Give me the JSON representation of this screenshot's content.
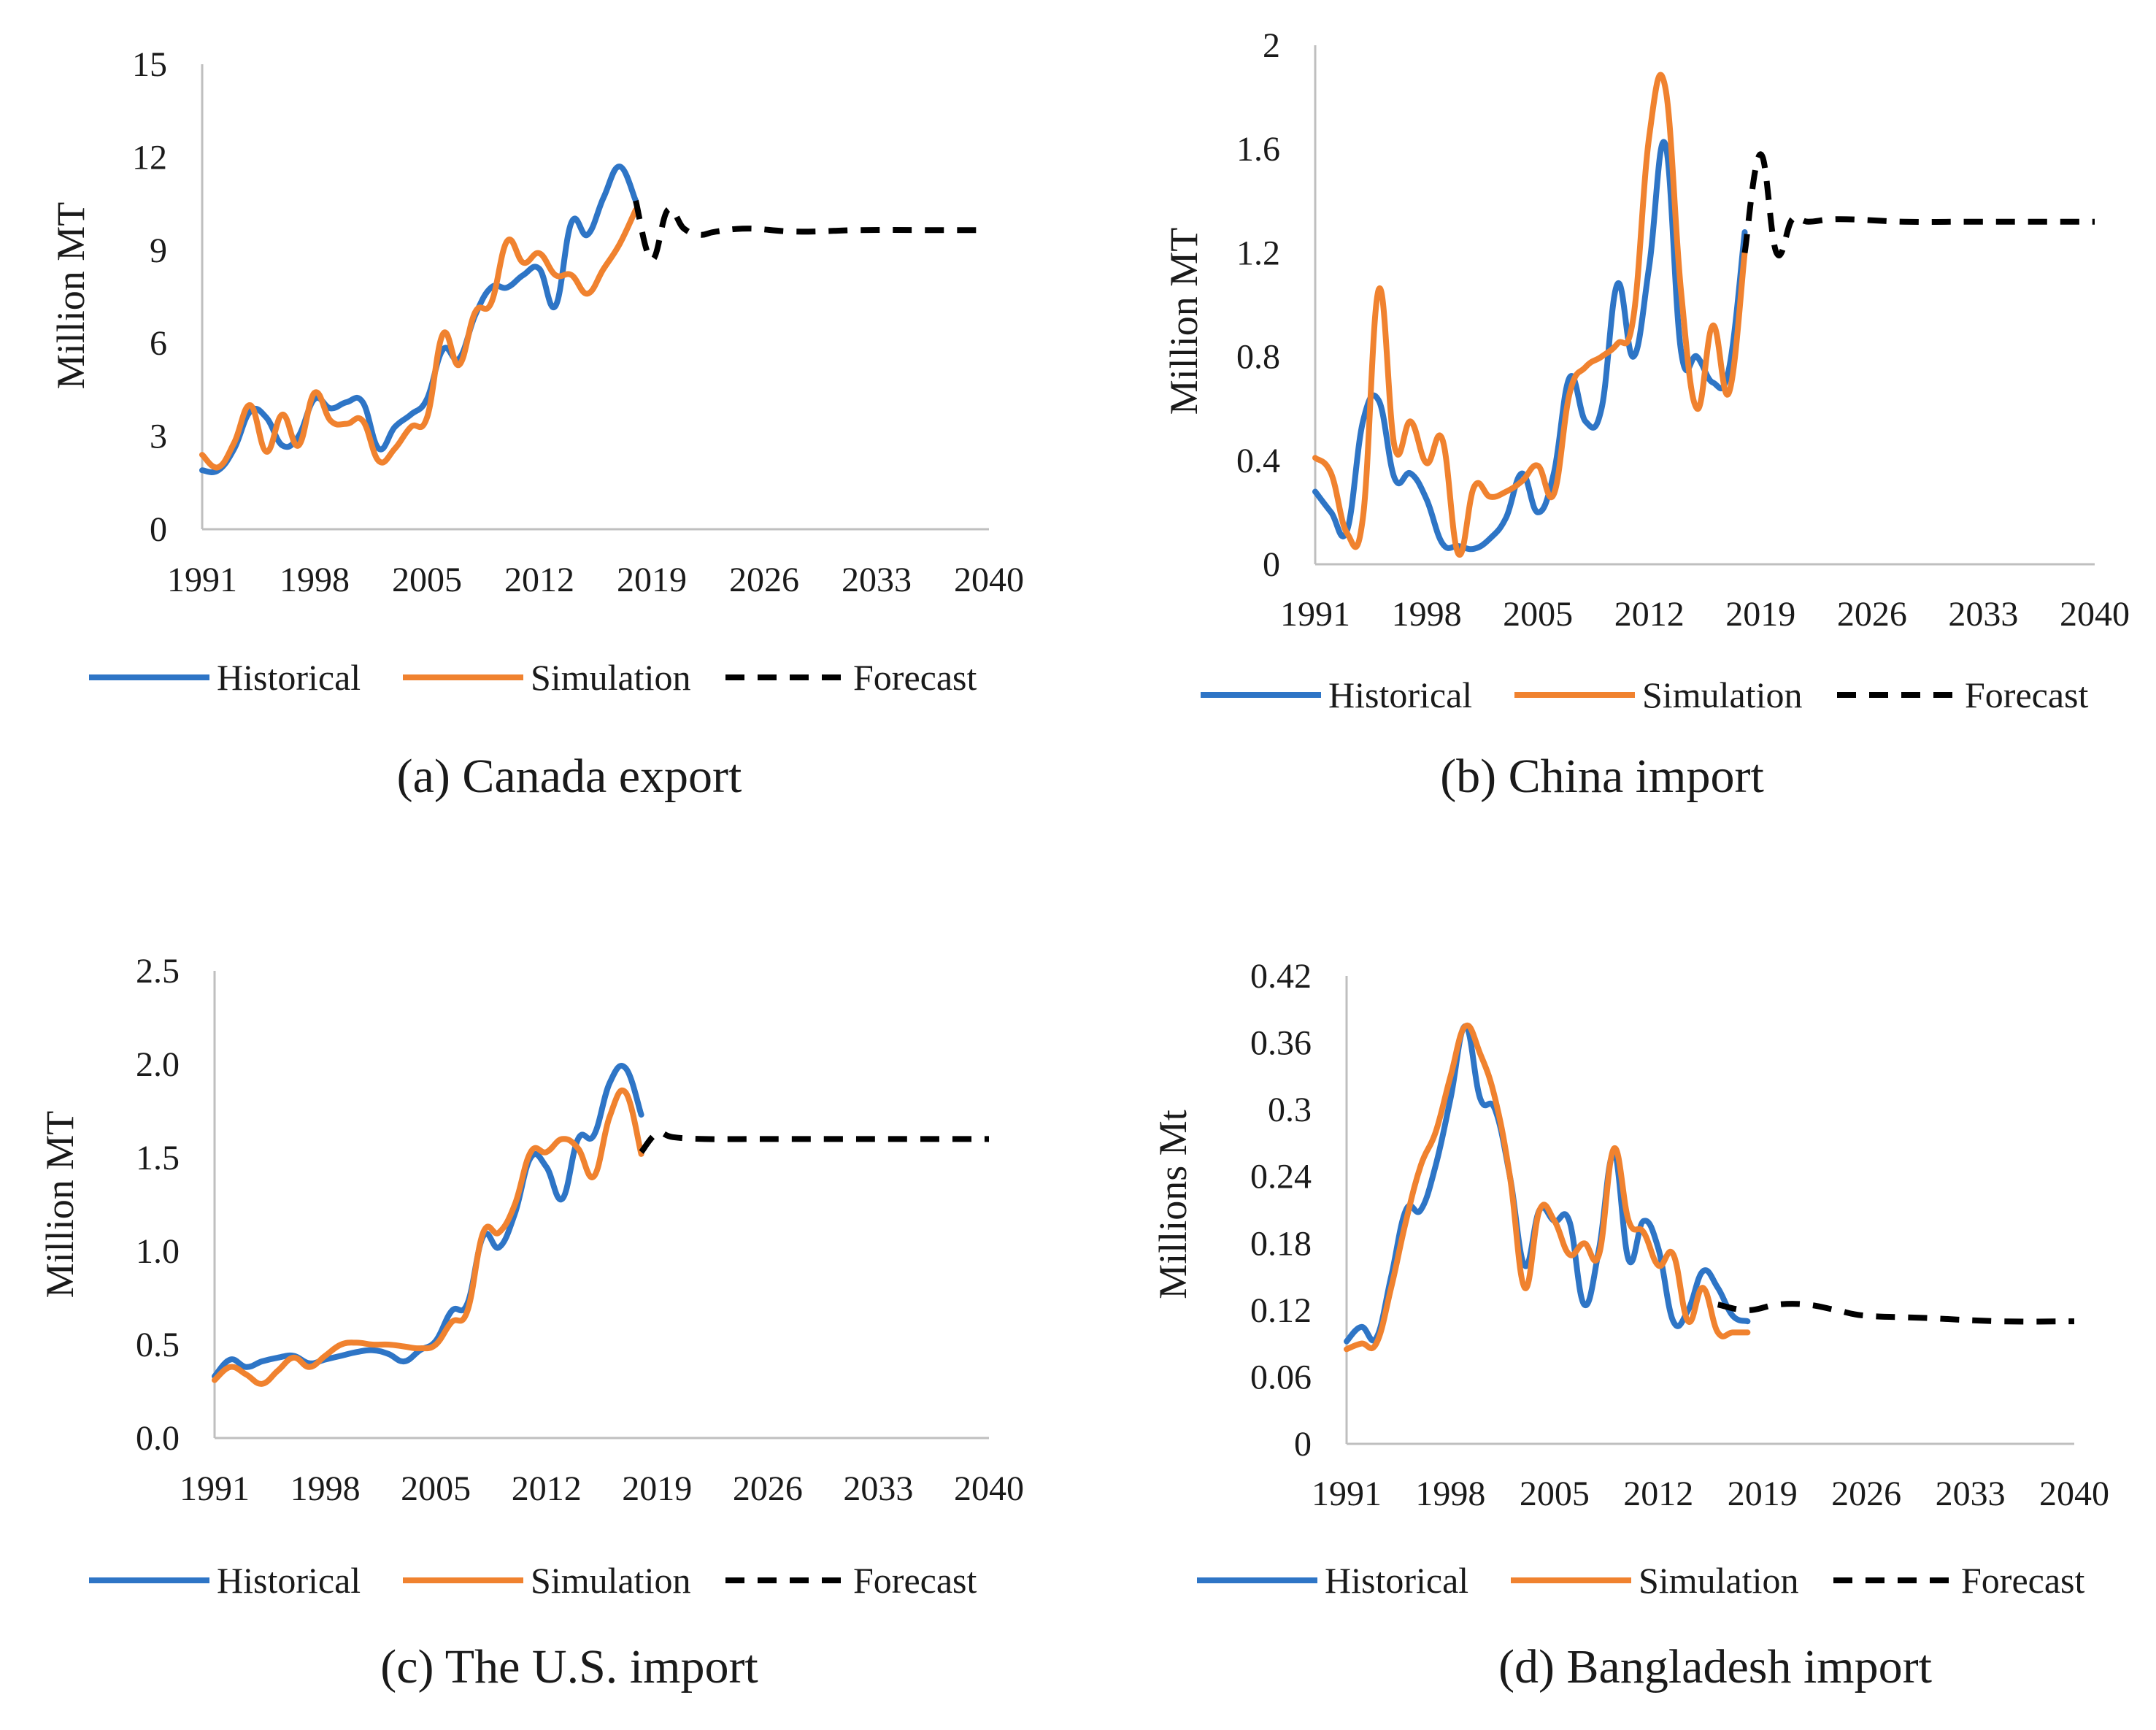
{
  "chart_data": [
    {
      "id": "a",
      "type": "line",
      "caption": "(a) Canada export",
      "ylabel": "Million MT",
      "ylim": [
        0,
        15
      ],
      "yticks": [
        "0",
        "3",
        "6",
        "9",
        "12",
        "15"
      ],
      "xlim": [
        1991,
        2040
      ],
      "xticks": [
        "1991",
        "1998",
        "2005",
        "2012",
        "2019",
        "2026",
        "2033",
        "2040"
      ],
      "legend": [
        "Historical",
        "Simulation",
        "Forecast"
      ],
      "colors": {
        "historical": "#2e75c6",
        "simulation": "#f0822f",
        "forecast": "#000000"
      },
      "series": [
        {
          "name": "Historical",
          "x": [
            1991,
            1992,
            1993,
            1994,
            1995,
            1996,
            1997,
            1998,
            1999,
            2000,
            2001,
            2002,
            2003,
            2004,
            2005,
            2006,
            2007,
            2008,
            2009,
            2010,
            2011,
            2012,
            2013,
            2014,
            2015,
            2016,
            2017,
            2018
          ],
          "values": [
            1.9,
            1.9,
            2.6,
            3.8,
            3.6,
            2.7,
            3.0,
            4.2,
            3.9,
            4.1,
            4.1,
            2.6,
            3.3,
            3.7,
            4.2,
            5.8,
            5.5,
            6.9,
            7.8,
            7.8,
            8.2,
            8.4,
            7.2,
            9.9,
            9.5,
            10.7,
            11.7,
            10.6
          ]
        },
        {
          "name": "Simulation",
          "x": [
            1991,
            1992,
            1993,
            1994,
            1995,
            1996,
            1997,
            1998,
            1999,
            2000,
            2001,
            2002,
            2003,
            2004,
            2005,
            2006,
            2007,
            2008,
            2009,
            2010,
            2011,
            2012,
            2013,
            2014,
            2015,
            2016,
            2017,
            2018
          ],
          "values": [
            2.4,
            2.0,
            2.8,
            4.0,
            2.5,
            3.7,
            2.7,
            4.4,
            3.5,
            3.4,
            3.5,
            2.2,
            2.6,
            3.3,
            3.6,
            6.3,
            5.3,
            7.0,
            7.3,
            9.3,
            8.6,
            8.9,
            8.2,
            8.2,
            7.6,
            8.4,
            9.2,
            10.3
          ]
        },
        {
          "name": "Forecast",
          "x": [
            2018,
            2019,
            2020,
            2021,
            2022,
            2023,
            2025,
            2028,
            2032,
            2036,
            2040
          ],
          "values": [
            10.6,
            8.7,
            10.3,
            9.7,
            9.5,
            9.6,
            9.7,
            9.6,
            9.65,
            9.65,
            9.65
          ]
        }
      ]
    },
    {
      "id": "b",
      "type": "line",
      "caption": "(b) China import",
      "ylabel": "Million MT",
      "ylim": [
        0,
        2
      ],
      "yticks": [
        "0",
        "0.4",
        "0.8",
        "1.2",
        "1.6",
        "2"
      ],
      "xlim": [
        1991,
        2040
      ],
      "xticks": [
        "1991",
        "1998",
        "2005",
        "2012",
        "2019",
        "2026",
        "2033",
        "2040"
      ],
      "legend": [
        "Historical",
        "Simulation",
        "Forecast"
      ],
      "colors": {
        "historical": "#2e75c6",
        "simulation": "#f0822f",
        "forecast": "#000000"
      },
      "series": [
        {
          "name": "Historical",
          "x": [
            1991,
            1992,
            1993,
            1994,
            1995,
            1996,
            1997,
            1998,
            1999,
            2000,
            2001,
            2002,
            2003,
            2004,
            2005,
            2006,
            2007,
            2008,
            2009,
            2010,
            2011,
            2012,
            2013,
            2014,
            2015,
            2016,
            2017,
            2018
          ],
          "values": [
            0.28,
            0.2,
            0.13,
            0.55,
            0.63,
            0.33,
            0.35,
            0.25,
            0.08,
            0.07,
            0.06,
            0.1,
            0.18,
            0.35,
            0.2,
            0.35,
            0.72,
            0.55,
            0.6,
            1.08,
            0.8,
            1.15,
            1.62,
            0.82,
            0.8,
            0.7,
            0.75,
            1.28
          ]
        },
        {
          "name": "Simulation",
          "x": [
            1991,
            1992,
            1993,
            1994,
            1995,
            1996,
            1997,
            1998,
            1999,
            2000,
            2001,
            2002,
            2003,
            2004,
            2005,
            2006,
            2007,
            2008,
            2009,
            2010,
            2011,
            2012,
            2013,
            2014,
            2015,
            2016,
            2017,
            2018
          ],
          "values": [
            0.41,
            0.35,
            0.12,
            0.18,
            1.06,
            0.45,
            0.55,
            0.39,
            0.48,
            0.04,
            0.3,
            0.26,
            0.28,
            0.32,
            0.38,
            0.27,
            0.66,
            0.76,
            0.8,
            0.85,
            0.95,
            1.65,
            1.84,
            1.05,
            0.6,
            0.92,
            0.66,
            1.2
          ]
        },
        {
          "name": "Forecast",
          "x": [
            2018,
            2019,
            2020,
            2021,
            2022,
            2024,
            2028,
            2032,
            2036,
            2040
          ],
          "values": [
            1.2,
            1.58,
            1.2,
            1.33,
            1.32,
            1.33,
            1.32,
            1.32,
            1.32,
            1.32
          ]
        }
      ]
    },
    {
      "id": "c",
      "type": "line",
      "caption": "(c) The U.S. import",
      "ylabel": "Million MT",
      "ylim": [
        0,
        2.5
      ],
      "yticks": [
        "0.0",
        "0.5",
        "1.0",
        "1.5",
        "2.0",
        "2.5"
      ],
      "xlim": [
        1991,
        2040
      ],
      "xticks": [
        "1991",
        "1998",
        "2005",
        "2012",
        "2019",
        "2026",
        "2033",
        "2040"
      ],
      "legend": [
        "Historical",
        "Simulation",
        "Forecast"
      ],
      "colors": {
        "historical": "#2e75c6",
        "simulation": "#f0822f",
        "forecast": "#000000"
      },
      "series": [
        {
          "name": "Historical",
          "x": [
            1991,
            1992,
            1993,
            1994,
            1995,
            1996,
            1997,
            1998,
            1999,
            2000,
            2001,
            2002,
            2003,
            2004,
            2005,
            2006,
            2007,
            2008,
            2009,
            2010,
            2011,
            2012,
            2013,
            2014,
            2015,
            2016,
            2017,
            2018
          ],
          "values": [
            0.33,
            0.42,
            0.38,
            0.41,
            0.43,
            0.44,
            0.4,
            0.42,
            0.44,
            0.46,
            0.47,
            0.45,
            0.41,
            0.47,
            0.52,
            0.68,
            0.72,
            1.08,
            1.02,
            1.2,
            1.5,
            1.45,
            1.28,
            1.6,
            1.62,
            1.9,
            1.98,
            1.73
          ]
        },
        {
          "name": "Simulation",
          "x": [
            1991,
            1992,
            1993,
            1994,
            1995,
            1996,
            1997,
            1998,
            1999,
            2000,
            2001,
            2002,
            2003,
            2004,
            2005,
            2006,
            2007,
            2008,
            2009,
            2010,
            2011,
            2012,
            2013,
            2014,
            2015,
            2016,
            2017,
            2018
          ],
          "values": [
            0.31,
            0.38,
            0.34,
            0.29,
            0.36,
            0.43,
            0.38,
            0.44,
            0.5,
            0.51,
            0.5,
            0.5,
            0.49,
            0.48,
            0.5,
            0.62,
            0.68,
            1.1,
            1.1,
            1.25,
            1.53,
            1.53,
            1.6,
            1.55,
            1.4,
            1.72,
            1.85,
            1.52
          ]
        },
        {
          "name": "Forecast",
          "x": [
            2018,
            2019,
            2020,
            2022,
            2025,
            2030,
            2035,
            2040
          ],
          "values": [
            1.53,
            1.63,
            1.61,
            1.6,
            1.6,
            1.6,
            1.6,
            1.6
          ]
        }
      ]
    },
    {
      "id": "d",
      "type": "line",
      "caption": "(d) Bangladesh import",
      "ylabel": "Millions Mt",
      "ylim": [
        0,
        0.42
      ],
      "yticks": [
        "0",
        "0.06",
        "0.12",
        "0.18",
        "0.24",
        "0.3",
        "0.36",
        "0.42"
      ],
      "xlim": [
        1991,
        2040
      ],
      "xticks": [
        "1991",
        "1998",
        "2005",
        "2012",
        "2019",
        "2026",
        "2033",
        "2040"
      ],
      "legend": [
        "Historical",
        "Simulation",
        "Forecast"
      ],
      "colors": {
        "historical": "#2e75c6",
        "simulation": "#f0822f",
        "forecast": "#000000"
      },
      "series": [
        {
          "name": "Historical",
          "x": [
            1991,
            1992,
            1993,
            1994,
            1995,
            1996,
            1997,
            1998,
            1999,
            2000,
            2001,
            2002,
            2003,
            2004,
            2005,
            2006,
            2007,
            2008,
            2009,
            2010,
            2011,
            2012,
            2013,
            2014,
            2015,
            2016,
            2017,
            2018
          ],
          "values": [
            0.092,
            0.105,
            0.095,
            0.15,
            0.21,
            0.21,
            0.25,
            0.31,
            0.375,
            0.31,
            0.3,
            0.24,
            0.16,
            0.21,
            0.2,
            0.2,
            0.125,
            0.175,
            0.26,
            0.165,
            0.2,
            0.175,
            0.11,
            0.12,
            0.155,
            0.14,
            0.115,
            0.11
          ]
        },
        {
          "name": "Simulation",
          "x": [
            1991,
            1992,
            1993,
            1994,
            1995,
            1996,
            1997,
            1998,
            1999,
            2000,
            2001,
            2002,
            2003,
            2004,
            2005,
            2006,
            2007,
            2008,
            2009,
            2010,
            2011,
            2012,
            2013,
            2014,
            2015,
            2016,
            2017,
            2018
          ],
          "values": [
            0.085,
            0.09,
            0.09,
            0.14,
            0.2,
            0.25,
            0.28,
            0.33,
            0.375,
            0.35,
            0.31,
            0.24,
            0.14,
            0.21,
            0.2,
            0.17,
            0.18,
            0.17,
            0.265,
            0.2,
            0.19,
            0.16,
            0.17,
            0.11,
            0.14,
            0.1,
            0.1,
            0.1
          ]
        },
        {
          "name": "Forecast",
          "x": [
            2016,
            2018,
            2020,
            2022,
            2024,
            2026,
            2030,
            2035,
            2040
          ],
          "values": [
            0.125,
            0.12,
            0.125,
            0.125,
            0.12,
            0.115,
            0.113,
            0.11,
            0.11
          ]
        }
      ]
    }
  ]
}
